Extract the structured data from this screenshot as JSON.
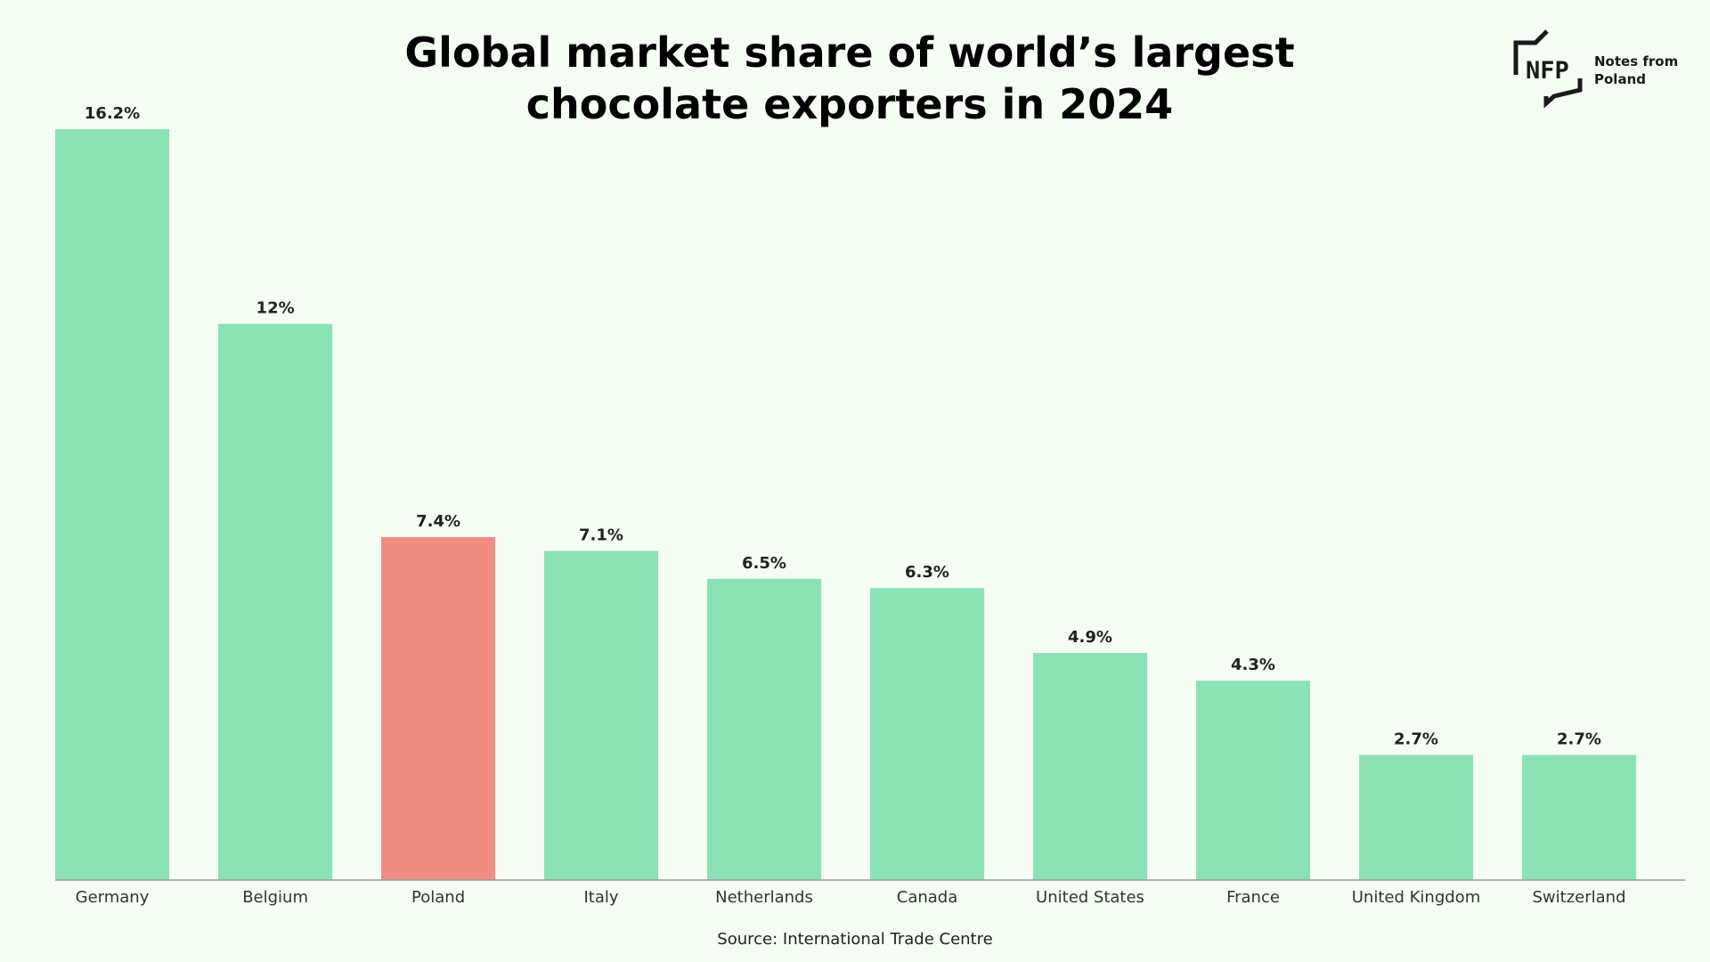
{
  "chart_data": {
    "type": "bar",
    "title_lines": [
      "Global market share of world’s largest",
      "chocolate exporters in 2024"
    ],
    "categories": [
      "Germany",
      "Belgium",
      "Poland",
      "Italy",
      "Netherlands",
      "Canada",
      "United States",
      "France",
      "United Kingdom",
      "Switzerland"
    ],
    "values": [
      16.2,
      12,
      7.4,
      7.1,
      6.5,
      6.3,
      4.9,
      4.3,
      2.7,
      2.7
    ],
    "value_labels": [
      "16.2%",
      "12%",
      "7.4%",
      "7.1%",
      "6.5%",
      "6.3%",
      "4.9%",
      "4.3%",
      "2.7%",
      "2.7%"
    ],
    "highlight_category": "Poland",
    "colors": {
      "default": "#8be2b7",
      "highlight": "#f08e84",
      "background": "#f6fdf5",
      "axis": "#999999"
    },
    "ylim": [
      0,
      16.2
    ],
    "xlabel": "",
    "ylabel": "",
    "grid": false,
    "legend": "none",
    "source": "Source: International Trade Centre"
  },
  "logo": {
    "mark": "NFP",
    "text_line1": "Notes from",
    "text_line2": "Poland",
    "icon": "nfp-logo-icon"
  }
}
